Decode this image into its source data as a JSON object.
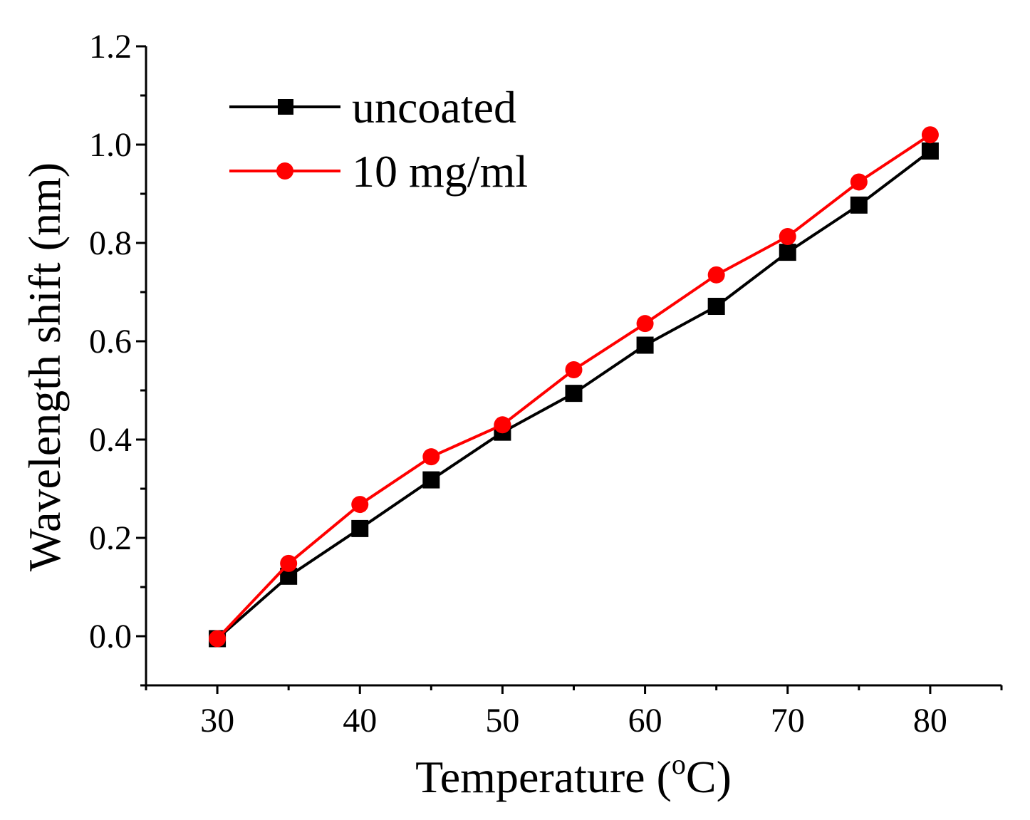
{
  "chart_data": {
    "type": "line",
    "title": "",
    "xlabel": "Temperature (",
    "xlabel_sup": "o",
    "xlabel_suffix": "C)",
    "ylabel": "Wavelength shift (nm)",
    "xlim": [
      25,
      85
    ],
    "ylim": [
      -0.1,
      1.2
    ],
    "xticks": [
      30,
      40,
      50,
      60,
      70,
      80
    ],
    "xtick_labels": [
      "30",
      "40",
      "50",
      "60",
      "70",
      "80"
    ],
    "yticks": [
      0.0,
      0.2,
      0.4,
      0.6,
      0.8,
      1.0,
      1.2
    ],
    "ytick_labels": [
      "0.0",
      "0.2",
      "0.4",
      "0.6",
      "0.8",
      "1.0",
      "1.2"
    ],
    "legend_position": "top-left",
    "x": [
      30,
      35,
      40,
      45,
      50,
      55,
      60,
      65,
      70,
      75,
      80
    ],
    "series": [
      {
        "name": "uncoated",
        "color": "#000000",
        "marker": "square",
        "values": [
          -0.005,
          0.122,
          0.219,
          0.318,
          0.415,
          0.494,
          0.592,
          0.671,
          0.781,
          0.877,
          0.987
        ]
      },
      {
        "name": "10 mg/ml",
        "color": "#ff0000",
        "marker": "circle",
        "values": [
          -0.005,
          0.148,
          0.268,
          0.365,
          0.43,
          0.542,
          0.636,
          0.735,
          0.813,
          0.924,
          1.02
        ]
      }
    ]
  }
}
